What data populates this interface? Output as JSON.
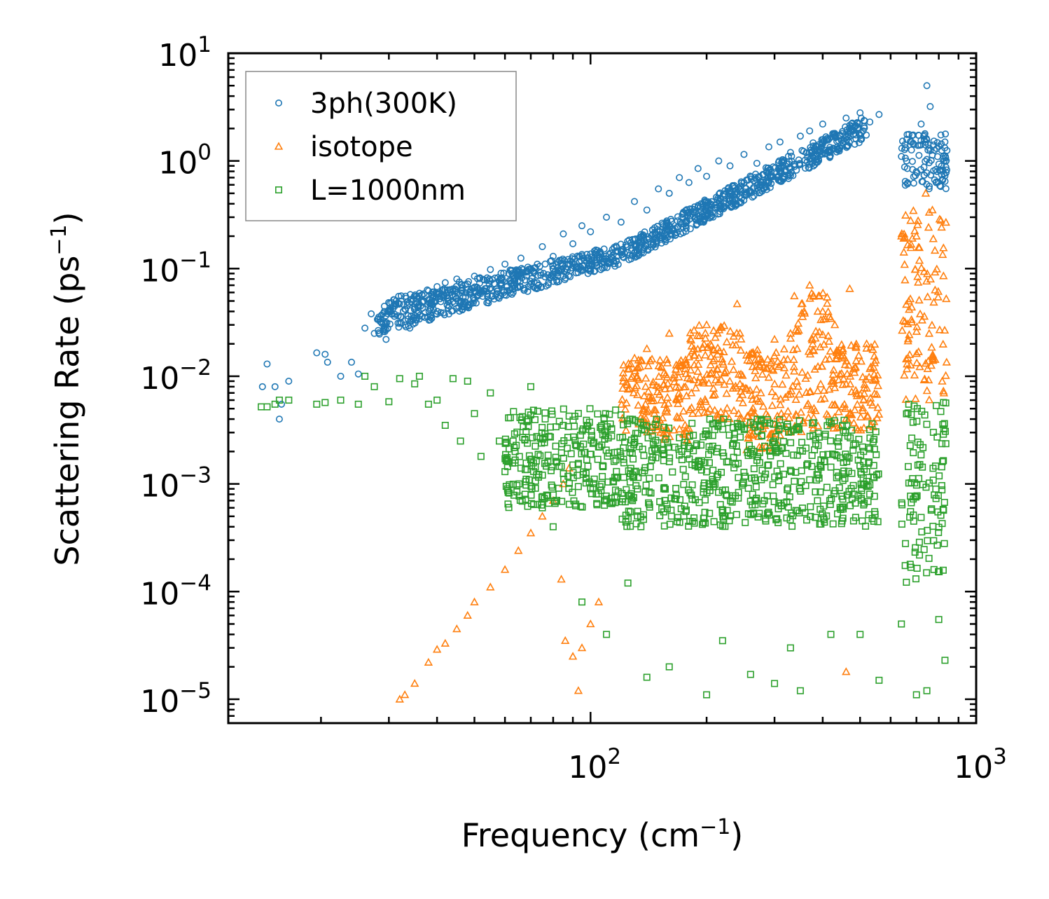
{
  "chart_data": {
    "type": "scatter",
    "title": "",
    "xlabel": "Frequency (cm⁻¹)",
    "ylabel": "Scattering Rate (ps⁻¹)",
    "xlabel_parts": {
      "base": "Frequency (cm",
      "sup": "−1",
      "tail": ")"
    },
    "ylabel_parts": {
      "base": "Scattering Rate (ps",
      "sup": "−1",
      "tail": ")"
    },
    "xscale": "log",
    "yscale": "log",
    "xlim": [
      11.5,
      1000
    ],
    "ylim": [
      6e-06,
      10
    ],
    "xticks": [
      {
        "value": 100,
        "base": "10",
        "exp": "2"
      },
      {
        "value": 1000,
        "base": "10",
        "exp": "3"
      }
    ],
    "yticks": [
      {
        "value": 10,
        "base": "10",
        "exp": "1"
      },
      {
        "value": 1,
        "base": "10",
        "exp": "0"
      },
      {
        "value": 0.1,
        "base": "10",
        "exp": "−1"
      },
      {
        "value": 0.01,
        "base": "10",
        "exp": "−2"
      },
      {
        "value": 0.001,
        "base": "10",
        "exp": "−3"
      },
      {
        "value": 0.0001,
        "base": "10",
        "exp": "−4"
      },
      {
        "value": 1e-05,
        "base": "10",
        "exp": "−5"
      }
    ],
    "legend_position": "top-left",
    "series": [
      {
        "name": "3ph(300K)",
        "marker": "circle",
        "color": "#1f77b4",
        "points": [
          [
            14.1,
            0.008
          ],
          [
            14.5,
            0.013
          ],
          [
            15.2,
            0.008
          ],
          [
            15.6,
            0.004
          ],
          [
            15.8,
            0.0055
          ],
          [
            16.5,
            0.009
          ],
          [
            19.5,
            0.0165
          ],
          [
            20.5,
            0.016
          ],
          [
            20.8,
            0.0135
          ],
          [
            22.5,
            0.01
          ],
          [
            24,
            0.0135
          ],
          [
            25,
            0.0105
          ],
          [
            26,
            0.028
          ],
          [
            27,
            0.038
          ],
          [
            27.5,
            0.025
          ],
          [
            28.5,
            0.034
          ],
          [
            29.5,
            0.022
          ],
          [
            30,
            0.041
          ],
          [
            31,
            0.036
          ],
          [
            32,
            0.031
          ],
          [
            33,
            0.042
          ],
          [
            34,
            0.028
          ],
          [
            35,
            0.044
          ],
          [
            36,
            0.034
          ],
          [
            37,
            0.05
          ],
          [
            38,
            0.062
          ],
          [
            39,
            0.046
          ],
          [
            40,
            0.068
          ],
          [
            41,
            0.055
          ],
          [
            42,
            0.074
          ],
          [
            43,
            0.045
          ],
          [
            44,
            0.062
          ],
          [
            45,
            0.08
          ],
          [
            46,
            0.05
          ],
          [
            48,
            0.072
          ],
          [
            50,
            0.085
          ],
          [
            52,
            0.061
          ],
          [
            55,
            0.098
          ],
          [
            58,
            0.078
          ],
          [
            60,
            0.11
          ],
          [
            63,
            0.087
          ],
          [
            66,
            0.125
          ],
          [
            70,
            0.1
          ],
          [
            75,
            0.16
          ],
          [
            80,
            0.13
          ],
          [
            85,
            0.21
          ],
          [
            90,
            0.17
          ],
          [
            95,
            0.25
          ],
          [
            100,
            0.22
          ],
          [
            110,
            0.3
          ],
          [
            120,
            0.27
          ],
          [
            130,
            0.42
          ],
          [
            140,
            0.35
          ],
          [
            150,
            0.55
          ],
          [
            160,
            0.5
          ],
          [
            170,
            0.7
          ],
          [
            180,
            0.63
          ],
          [
            190,
            0.85
          ],
          [
            200,
            0.72
          ],
          [
            215,
            1.0
          ],
          [
            230,
            0.9
          ],
          [
            250,
            1.15
          ],
          [
            270,
            0.95
          ],
          [
            290,
            1.35
          ],
          [
            310,
            1.5
          ],
          [
            330,
            1.2
          ],
          [
            350,
            1.7
          ],
          [
            370,
            1.9
          ],
          [
            400,
            2.2
          ],
          [
            430,
            1.8
          ],
          [
            460,
            2.5
          ],
          [
            500,
            2.8
          ],
          [
            530,
            2.3
          ],
          [
            560,
            2.7
          ],
          [
            640,
            1.1
          ],
          [
            680,
            1.5
          ],
          [
            720,
            2.2
          ],
          [
            745,
            5.0
          ],
          [
            760,
            3.2
          ],
          [
            790,
            1.3
          ],
          [
            820,
            1.05
          ],
          [
            840,
            1.25
          ]
        ],
        "bands": [
          [
            28,
            520,
            0.024,
            0.05,
            0.11,
            0.17,
            1.6,
            2.7
          ],
          [
            640,
            840,
            0.55,
            1.8
          ]
        ]
      },
      {
        "name": "isotope",
        "marker": "triangle",
        "color": "#ff7f0e",
        "points": [
          [
            32,
            1e-05
          ],
          [
            33,
            1.1e-05
          ],
          [
            35,
            1.4e-05
          ],
          [
            38,
            2.2e-05
          ],
          [
            40,
            2.9e-05
          ],
          [
            42,
            3.3e-05
          ],
          [
            45,
            4.5e-05
          ],
          [
            48,
            6e-05
          ],
          [
            50,
            8e-05
          ],
          [
            55,
            0.00011
          ],
          [
            60,
            0.00016
          ],
          [
            65,
            0.00024
          ],
          [
            70,
            0.00035
          ],
          [
            75,
            0.0005
          ],
          [
            80,
            0.0007
          ],
          [
            85,
            0.001
          ],
          [
            88,
            0.0014
          ],
          [
            84,
            0.00013
          ],
          [
            86,
            3.5e-05
          ],
          [
            90,
            2.5e-05
          ],
          [
            93,
            1.2e-05
          ],
          [
            95,
            3e-05
          ],
          [
            100,
            5e-05
          ],
          [
            105,
            8e-05
          ],
          [
            140,
            0.018
          ],
          [
            160,
            0.025
          ],
          [
            200,
            0.03
          ],
          [
            240,
            0.047
          ],
          [
            300,
            0.022
          ],
          [
            330,
            0.025
          ],
          [
            370,
            0.07
          ],
          [
            400,
            0.04
          ],
          [
            430,
            0.03
          ],
          [
            470,
            0.065
          ],
          [
            520,
            0.02
          ],
          [
            640,
            0.2
          ],
          [
            700,
            0.2
          ],
          [
            740,
            0.5
          ],
          [
            770,
            0.35
          ],
          [
            810,
            0.28
          ],
          [
            460,
            1.8e-05
          ]
        ],
        "bands": [
          [
            120,
            180,
            0.0025,
            0.015
          ],
          [
            180,
            250,
            0.004,
            0.03
          ],
          [
            250,
            330,
            0.002,
            0.018
          ],
          [
            330,
            420,
            0.003,
            0.06
          ],
          [
            420,
            560,
            0.003,
            0.02
          ],
          [
            640,
            840,
            0.006,
            0.35
          ]
        ]
      },
      {
        "name": "L=1000nm",
        "marker": "square",
        "color": "#2ca02c",
        "points": [
          [
            14,
            0.0052
          ],
          [
            14.5,
            0.0052
          ],
          [
            15.2,
            0.0055
          ],
          [
            15.6,
            0.006
          ],
          [
            16.5,
            0.006
          ],
          [
            19.5,
            0.0055
          ],
          [
            20.5,
            0.0057
          ],
          [
            22.5,
            0.006
          ],
          [
            25,
            0.0055
          ],
          [
            26,
            0.01
          ],
          [
            27.5,
            0.008
          ],
          [
            30,
            0.0058
          ],
          [
            32,
            0.0095
          ],
          [
            35,
            0.0085
          ],
          [
            36,
            0.01
          ],
          [
            38,
            0.0055
          ],
          [
            40,
            0.006
          ],
          [
            42,
            0.0035
          ],
          [
            44,
            0.0095
          ],
          [
            46,
            0.0025
          ],
          [
            48,
            0.009
          ],
          [
            50,
            0.0045
          ],
          [
            52,
            0.0018
          ],
          [
            55,
            0.007
          ],
          [
            58,
            0.0025
          ],
          [
            60,
            0.0013
          ],
          [
            63,
            0.0025
          ],
          [
            66,
            0.0014
          ],
          [
            70,
            0.008
          ],
          [
            75,
            0.0006
          ],
          [
            80,
            0.0004
          ],
          [
            85,
            0.0035
          ],
          [
            90,
            0.0015
          ],
          [
            95,
            8e-05
          ],
          [
            100,
            0.0009
          ],
          [
            110,
            4e-05
          ],
          [
            125,
            0.00012
          ],
          [
            140,
            1.6e-05
          ],
          [
            160,
            2e-05
          ],
          [
            200,
            1.1e-05
          ],
          [
            220,
            3.5e-05
          ],
          [
            260,
            1.7e-05
          ],
          [
            300,
            1.4e-05
          ],
          [
            330,
            3e-05
          ],
          [
            350,
            1.2e-05
          ],
          [
            420,
            4e-05
          ],
          [
            500,
            4e-05
          ],
          [
            560,
            1.5e-05
          ],
          [
            640,
            5e-05
          ],
          [
            700,
            1.1e-05
          ],
          [
            745,
            1.2e-05
          ],
          [
            800,
            5.5e-05
          ],
          [
            830,
            2.3e-05
          ]
        ],
        "bands": [
          [
            60,
            120,
            0.0006,
            0.005
          ],
          [
            120,
            560,
            0.0004,
            0.004
          ],
          [
            640,
            840,
            0.00012,
            0.006
          ]
        ]
      }
    ]
  }
}
